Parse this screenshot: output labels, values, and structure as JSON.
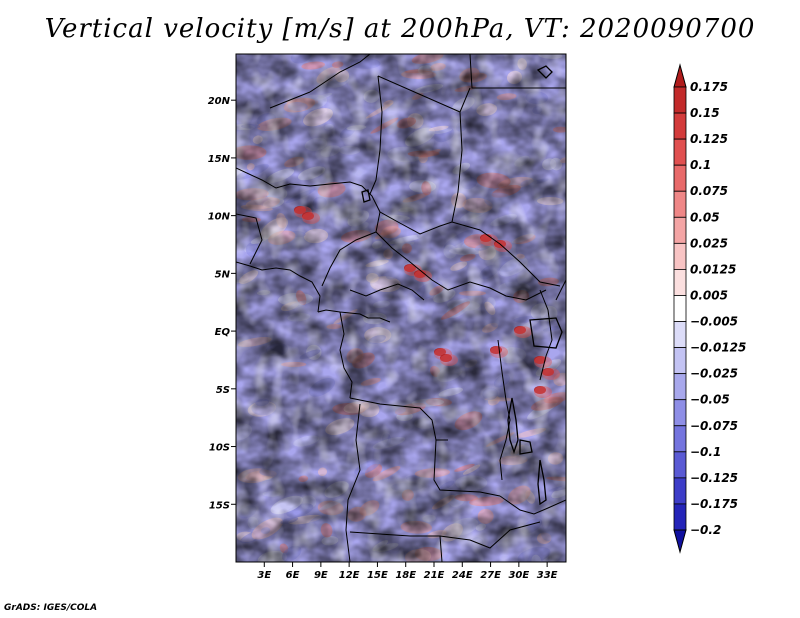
{
  "chart_data": {
    "type": "heatmap",
    "title": "Vertical velocity [m/s] at 200hPa, VT: 2020090700",
    "x_ticks": [
      "3E",
      "6E",
      "9E",
      "12E",
      "15E",
      "18E",
      "21E",
      "24E",
      "27E",
      "30E",
      "33E"
    ],
    "y_ticks": [
      "20N",
      "15N",
      "10N",
      "5N",
      "EQ",
      "5S",
      "10S",
      "15S"
    ],
    "colorbar": {
      "labels": [
        "0.175",
        "0.15",
        "0.125",
        "0.1",
        "0.075",
        "0.05",
        "0.025",
        "0.0125",
        "0.005",
        "-0.005",
        "-0.0125",
        "-0.025",
        "-0.05",
        "-0.075",
        "-0.1",
        "-0.125",
        "-0.175",
        "-0.2"
      ],
      "colors": [
        "#b01c1c",
        "#c22a2a",
        "#d33b3b",
        "#e05050",
        "#e86a6a",
        "#ef8787",
        "#f4a5a5",
        "#f8c4c4",
        "#fbdfdf",
        "#ffffff",
        "#dcdcf8",
        "#c3c3f3",
        "#a8a8ec",
        "#8e8ee6",
        "#7474de",
        "#5a5ad4",
        "#3d3dc8",
        "#2424b8",
        "#10109f"
      ],
      "extend": "both"
    },
    "x_range": [
      0,
      35
    ],
    "y_range": [
      -20,
      24
    ]
  },
  "footer": "GrADS: IGES/COLA"
}
